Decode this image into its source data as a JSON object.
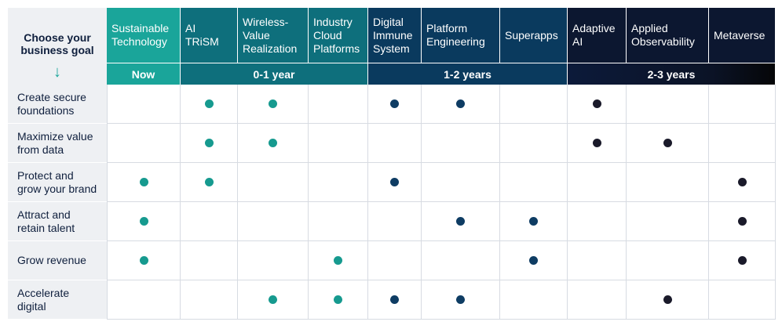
{
  "goal_header": {
    "title": "Choose your\nbusiness goal",
    "arrow": "↓"
  },
  "colors": {
    "now": "#1aa59a",
    "year01": "#0e6f7c",
    "year12": "#0a3a5e",
    "year23": "#0c1730",
    "dot_now_01": "#169a8f",
    "dot_12": "#0e3c63",
    "dot_23": "#1a1a2a"
  },
  "columns": [
    {
      "label": "Sustainable\nTechnology",
      "band": "now"
    },
    {
      "label": "AI\nTRiSM",
      "band": "year01"
    },
    {
      "label": "Wireless-\nValue\nRealization",
      "band": "year01"
    },
    {
      "label": "Industry\nCloud\nPlatforms",
      "band": "year01"
    },
    {
      "label": "Digital\nImmune\nSystem",
      "band": "year12"
    },
    {
      "label": "Platform\nEngineering",
      "band": "year12"
    },
    {
      "label": "Superapps",
      "band": "year12"
    },
    {
      "label": "Adaptive\nAI",
      "band": "year23"
    },
    {
      "label": "Applied\nObservability",
      "band": "year23"
    },
    {
      "label": "Metaverse",
      "band": "year23"
    }
  ],
  "bands": [
    {
      "key": "now",
      "label": "Now",
      "span": 1
    },
    {
      "key": "year01",
      "label": "0-1 year",
      "span": 3
    },
    {
      "key": "year12",
      "label": "1-2 years",
      "span": 3
    },
    {
      "key": "year23",
      "label": "2-3 years",
      "span": 3
    }
  ],
  "goals": [
    {
      "label": "Create secure\nfoundations",
      "marks": [
        0,
        1,
        1,
        0,
        1,
        1,
        0,
        1,
        0,
        0
      ]
    },
    {
      "label": "Maximize value\nfrom data",
      "marks": [
        0,
        1,
        1,
        0,
        0,
        0,
        0,
        1,
        1,
        0
      ]
    },
    {
      "label": "Protect and\ngrow your brand",
      "marks": [
        1,
        1,
        0,
        0,
        1,
        0,
        0,
        0,
        0,
        1
      ]
    },
    {
      "label": "Attract and\nretain talent",
      "marks": [
        1,
        0,
        0,
        0,
        0,
        1,
        1,
        0,
        0,
        1
      ]
    },
    {
      "label": "Grow revenue",
      "marks": [
        1,
        0,
        0,
        1,
        0,
        0,
        1,
        0,
        0,
        1
      ]
    },
    {
      "label": "Accelerate\ndigital",
      "marks": [
        0,
        0,
        1,
        1,
        1,
        1,
        0,
        0,
        1,
        0
      ]
    }
  ]
}
